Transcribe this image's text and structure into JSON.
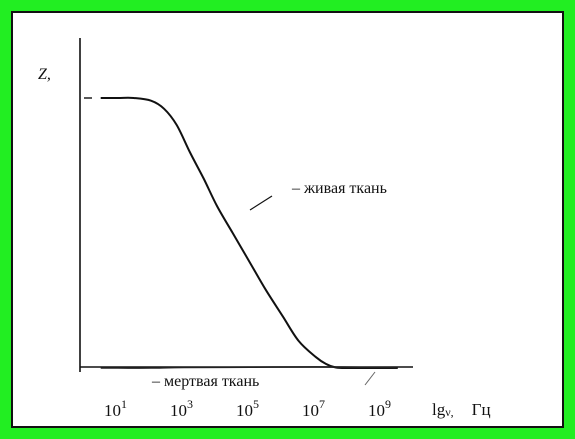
{
  "chart_data": {
    "type": "line",
    "title": "",
    "ylabel": "Z,",
    "xlabel_main": "lg",
    "xlabel_sub": "ν,",
    "xlabel_unit": "Гц",
    "x_scale": "log",
    "xlim": [
      1,
      10000000000
    ],
    "ylim": [
      0,
      1.1
    ],
    "grid": false,
    "x_ticks": [
      {
        "value": 10,
        "base": "10",
        "exp": "1"
      },
      {
        "value": 1000,
        "base": "10",
        "exp": "3"
      },
      {
        "value": 100000,
        "base": "10",
        "exp": "5"
      },
      {
        "value": 10000000,
        "base": "10",
        "exp": "7"
      },
      {
        "value": 1000000000,
        "base": "10",
        "exp": "9"
      }
    ],
    "series": [
      {
        "name": "– живая ткань",
        "x": [
          3,
          10,
          30,
          100,
          250,
          600,
          1500,
          4000,
          10000,
          30000,
          100000,
          300000,
          1000000,
          3000000,
          10000000,
          20000000,
          40000000,
          100000000,
          300000000,
          3000000000
        ],
        "y": [
          1.0,
          1.0,
          1.0,
          0.99,
          0.96,
          0.9,
          0.8,
          0.7,
          0.6,
          0.5,
          0.39,
          0.29,
          0.19,
          0.1,
          0.04,
          0.015,
          0.002,
          0.0,
          0.0,
          0.0
        ]
      },
      {
        "name": "– мертвая ткань",
        "x": [
          3,
          10,
          100,
          1000,
          100000,
          10000000,
          1000000000,
          3000000000
        ],
        "y": [
          0.0,
          0.0,
          0.0,
          0.002,
          0.003,
          0.004,
          0.002,
          0.0
        ]
      }
    ]
  },
  "colors": {
    "frame": "#22ee22",
    "ink": "#111111"
  }
}
